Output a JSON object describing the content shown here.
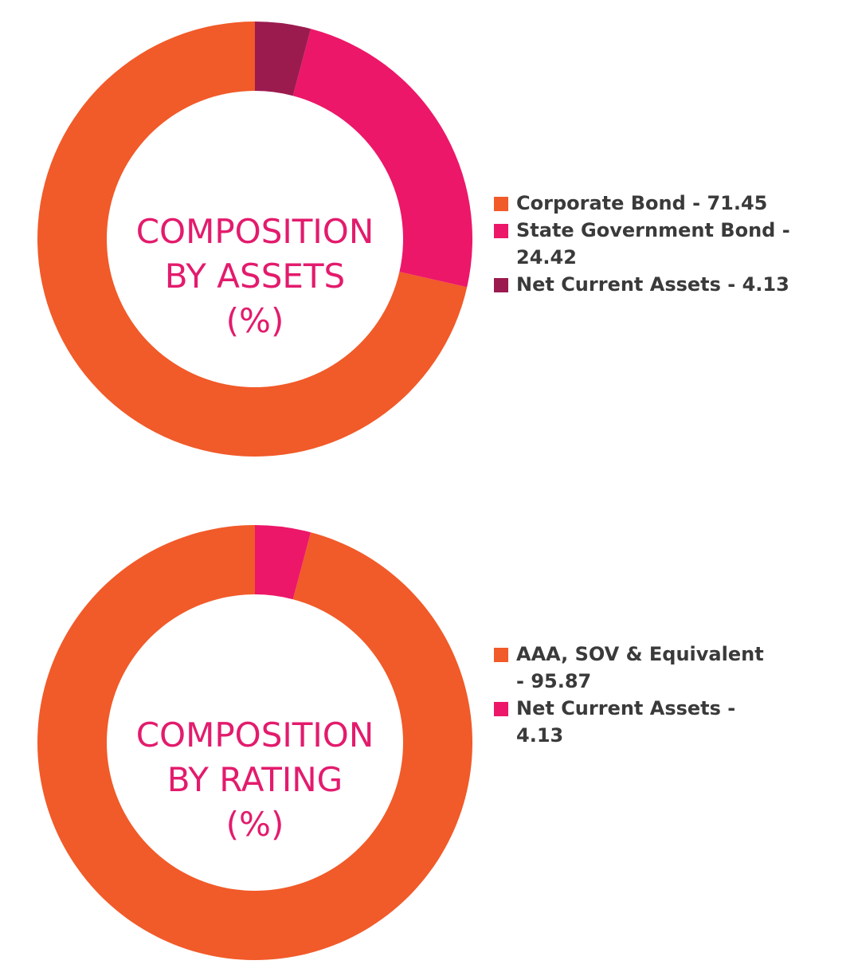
{
  "chart_data": [
    {
      "type": "pie",
      "title_lines": [
        "COMPOSITION",
        "BY ASSETS",
        "(%)"
      ],
      "slices": [
        {
          "label": "Corporate Bond",
          "value": 71.45,
          "color": "#f15a29"
        },
        {
          "label": "State Government Bond",
          "value": 24.42,
          "color": "#ec1769"
        },
        {
          "label": "Net Current Assets",
          "value": 4.13,
          "color": "#9b1b4f"
        }
      ],
      "legend_position": "right",
      "donut": true
    },
    {
      "type": "pie",
      "title_lines": [
        "COMPOSITION",
        "BY RATING",
        "(%)"
      ],
      "slices": [
        {
          "label": "AAA, SOV & Equivalent",
          "value": 95.87,
          "color": "#f15a29"
        },
        {
          "label": "Net Current Assets",
          "value": 4.13,
          "color": "#ec1769"
        }
      ],
      "legend_position": "right",
      "donut": true
    }
  ]
}
